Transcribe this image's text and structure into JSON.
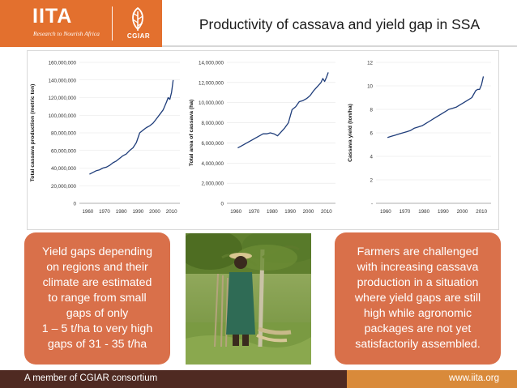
{
  "header": {
    "logo_text": "IITA",
    "logo_tagline": "Research to Nourish Africa",
    "partner_logo_text": "CGIAR",
    "title": "Productivity of cassava and yield gap in SSA"
  },
  "colors": {
    "brand_orange": "#e3702e",
    "callout": "#d9704a",
    "footer_dark": "#4f2a22",
    "footer_accent": "#d98a3a",
    "line": "#1f3d7a"
  },
  "chart_data": [
    {
      "type": "line",
      "ylabel": "Total cassava production (metric ton)",
      "xlabel": "",
      "x_ticks": [
        "1960",
        "1970",
        "1980",
        "1990",
        "2000",
        "2010"
      ],
      "y_ticks": [
        "0",
        "20,000,000",
        "40,000,000",
        "60,000,000",
        "80,000,000",
        "100,000,000",
        "120,000,000",
        "140,000,000",
        "160,000,000"
      ],
      "xlim": [
        1955,
        2015
      ],
      "ylim": [
        0,
        160000000
      ],
      "series": [
        {
          "x": [
            1961,
            1963,
            1965,
            1967,
            1969,
            1971,
            1973,
            1975,
            1977,
            1979,
            1981,
            1983,
            1985,
            1987,
            1989,
            1991,
            1993,
            1995,
            1997,
            1999,
            2001,
            2003,
            2005,
            2007,
            2008,
            2009,
            2010,
            2011
          ],
          "values": [
            33000000,
            35000000,
            37000000,
            38000000,
            40000000,
            41000000,
            43000000,
            46000000,
            48000000,
            51000000,
            54000000,
            56000000,
            60000000,
            63000000,
            69000000,
            80000000,
            83000000,
            86000000,
            88000000,
            91000000,
            96000000,
            101000000,
            106000000,
            115000000,
            120000000,
            118000000,
            126000000,
            140000000
          ]
        }
      ]
    },
    {
      "type": "line",
      "ylabel": "Total area of cassava (ha)",
      "xlabel": "",
      "x_ticks": [
        "1960",
        "1970",
        "1980",
        "1990",
        "2000",
        "2010"
      ],
      "y_ticks": [
        "0",
        "2,000,000",
        "4,000,000",
        "6,000,000",
        "8,000,000",
        "10,000,000",
        "12,000,000",
        "14,000,000"
      ],
      "xlim": [
        1955,
        2015
      ],
      "ylim": [
        0,
        14000000
      ],
      "series": [
        {
          "x": [
            1961,
            1963,
            1965,
            1967,
            1969,
            1971,
            1973,
            1975,
            1977,
            1979,
            1981,
            1983,
            1985,
            1987,
            1989,
            1991,
            1993,
            1995,
            1997,
            1999,
            2001,
            2003,
            2005,
            2007,
            2008,
            2009,
            2010,
            2011
          ],
          "values": [
            5500000,
            5700000,
            5900000,
            6100000,
            6300000,
            6500000,
            6700000,
            6900000,
            6900000,
            7000000,
            6900000,
            6700000,
            7100000,
            7500000,
            8000000,
            9300000,
            9600000,
            10100000,
            10200000,
            10400000,
            10700000,
            11200000,
            11600000,
            12000000,
            12400000,
            12100000,
            12500000,
            13000000
          ]
        }
      ]
    },
    {
      "type": "line",
      "ylabel": "Cassava yield (ton/ha)",
      "xlabel": "",
      "x_ticks": [
        "1960",
        "1970",
        "1980",
        "1990",
        "2000",
        "2010"
      ],
      "y_ticks": [
        "-",
        "2",
        "4",
        "6",
        "8",
        "10",
        "12"
      ],
      "xlim": [
        1955,
        2015
      ],
      "ylim": [
        0,
        12
      ],
      "series": [
        {
          "x": [
            1961,
            1963,
            1965,
            1967,
            1969,
            1971,
            1973,
            1975,
            1977,
            1979,
            1981,
            1983,
            1985,
            1987,
            1989,
            1991,
            1993,
            1995,
            1997,
            1999,
            2001,
            2003,
            2005,
            2007,
            2008,
            2009,
            2010,
            2011
          ],
          "values": [
            5.6,
            5.7,
            5.8,
            5.9,
            6.0,
            6.1,
            6.2,
            6.4,
            6.5,
            6.6,
            6.8,
            7.0,
            7.2,
            7.4,
            7.6,
            7.8,
            8.0,
            8.1,
            8.2,
            8.4,
            8.6,
            8.8,
            9.0,
            9.6,
            9.7,
            9.7,
            10.1,
            10.8
          ]
        }
      ]
    }
  ],
  "callouts": {
    "left": "Yield gaps depending\non regions and their\nclimate are estimated\nto range from small\ngaps of only\n1 – 5 t/ha to very high\ngaps of 31 - 35 t/ha",
    "right": "Farmers are challenged\nwith increasing cassava\nproduction in a situation\nwhere yield gaps are still\nhigh while agronomic\npackages are not yet\nsatisfactorily assembled."
  },
  "footer": {
    "left": "A member of CGIAR consortium",
    "right": "www.iita.org"
  }
}
